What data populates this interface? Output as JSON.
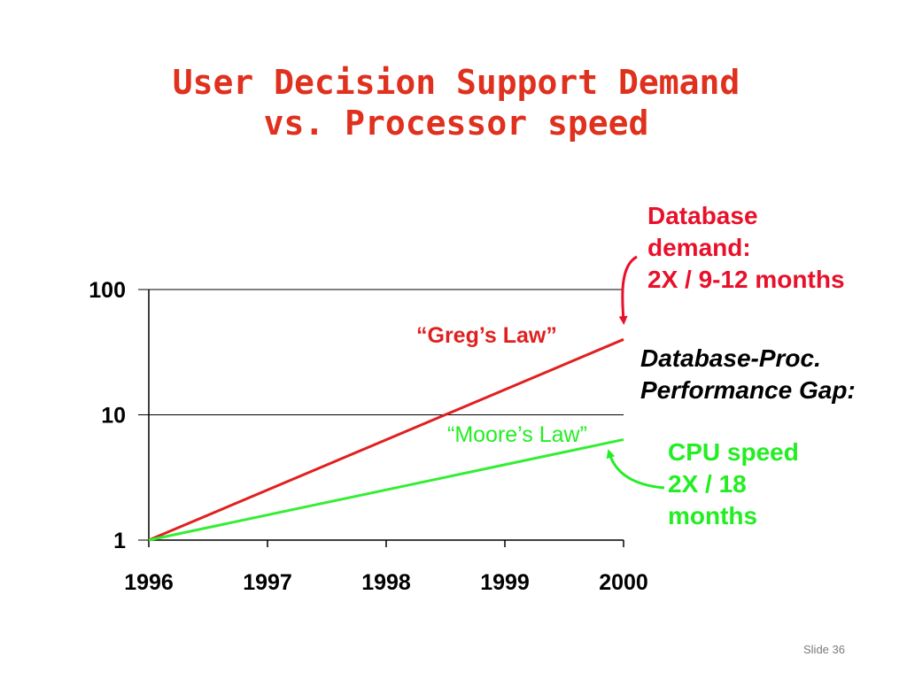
{
  "slide": {
    "title_line1": "User Decision Support Demand",
    "title_line2": "vs. Processor speed",
    "slide_number": "Slide 36"
  },
  "annotations": {
    "database_demand": [
      "Database",
      "demand:",
      "2X / 9-12 months"
    ],
    "gap": [
      "Database-Proc.",
      "Performance Gap:"
    ],
    "cpu_speed": [
      "CPU speed",
      "2X /  18",
      "months"
    ]
  },
  "colors": {
    "title": "#e0301e",
    "database": "#e8102a",
    "greg_line": "#e02020",
    "moore_line": "#33ee33",
    "cpu_text": "#22ee22",
    "axis": "#000000"
  },
  "chart_data": {
    "type": "line",
    "x_scale": "linear",
    "y_scale": "log",
    "categories": [
      "1996",
      "1997",
      "1998",
      "1999",
      "2000"
    ],
    "xlim": [
      1996,
      2000
    ],
    "ylim": [
      1,
      100
    ],
    "y_ticks": [
      "1",
      "10",
      "100"
    ],
    "grid": "horizontal major gridlines",
    "series": [
      {
        "name": "“Greg’s Law”",
        "x": [
          1996,
          2000
        ],
        "y": [
          1,
          40
        ]
      },
      {
        "name": "“Moore’s Law”",
        "x": [
          1996,
          2000
        ],
        "y": [
          1,
          6.35
        ]
      }
    ]
  }
}
